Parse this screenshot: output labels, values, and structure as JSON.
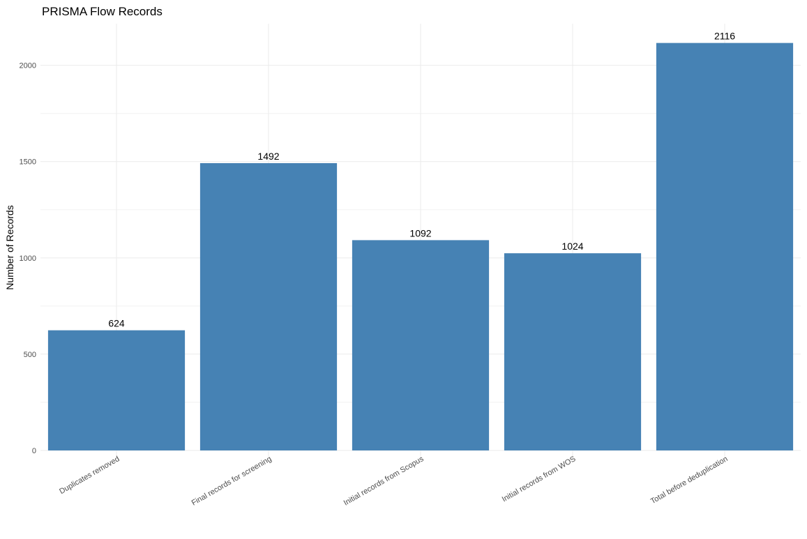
{
  "chart_data": {
    "type": "bar",
    "title": "PRISMA Flow Records",
    "xlabel": "",
    "ylabel": "Number of Records",
    "categories": [
      "Duplicates removed",
      "Final records for screening",
      "Initial records from Scopus",
      "Initial records from WOS",
      "Total before deduplication"
    ],
    "values": [
      624,
      1492,
      1092,
      1024,
      2116
    ],
    "data_labels": [
      "624",
      "1492",
      "1092",
      "1024",
      "2116"
    ],
    "ylim": [
      0,
      2116
    ],
    "y_ticks": [
      0,
      500,
      1000,
      1500,
      2000
    ],
    "y_tick_labels": [
      "0",
      "500",
      "1000",
      "1500",
      "2000"
    ],
    "x_tick_rotation_deg": -30,
    "grid": true,
    "legend": "none",
    "bar_color": "#4682b4"
  }
}
